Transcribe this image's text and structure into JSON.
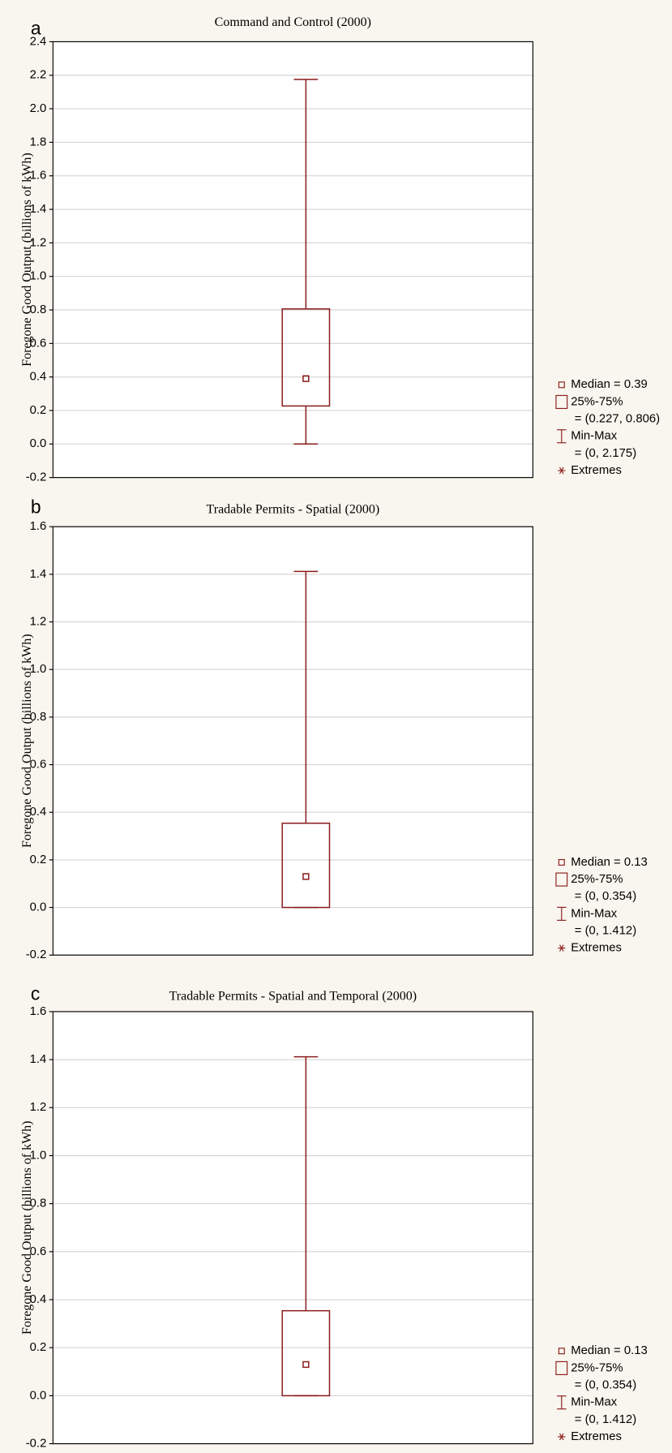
{
  "chart_data": [
    {
      "type": "box",
      "label": "a",
      "title": "Command and Control (2000)",
      "ylabel": "Foregone Good Output (billions of kWh)",
      "median": 0.39,
      "q1": 0.227,
      "q3": 0.806,
      "min": 0,
      "max": 2.175,
      "color": "#8b1a1a",
      "ylim": [
        -0.2,
        2.4
      ],
      "yticks": [
        -0.2,
        {
          "value": 0,
          "label": "0.0"
        },
        0.2,
        0.4,
        0.6,
        0.8,
        {
          "value": 1,
          "label": "1.0"
        },
        1.2,
        1.4,
        1.6,
        1.8,
        {
          "value": 2,
          "label": "2.0"
        },
        2.2,
        2.4
      ],
      "grid": true,
      "legend": [
        "Median = 0.39",
        "25%-75%",
        "= (0.227, 0.806)",
        "Min-Max",
        "= (0, 2.175)",
        "Extremes"
      ]
    },
    {
      "type": "box",
      "label": "b",
      "title": "Tradable Permits - Spatial (2000)",
      "ylabel": "Foregone Good Output (billions of kWh)",
      "median": 0.13,
      "q1": 0,
      "q3": 0.354,
      "min": 0,
      "max": 1.412,
      "color": "#8b1a1a",
      "ylim": [
        -0.2,
        1.6
      ],
      "yticks": [
        -0.2,
        {
          "value": 0,
          "label": "0.0"
        },
        0.2,
        0.4,
        0.6,
        0.8,
        {
          "value": 1,
          "label": "1.0"
        },
        1.2,
        1.4,
        1.6
      ],
      "grid": true,
      "legend": [
        "Median = 0.13",
        "25%-75%",
        "= (0, 0.354)",
        "Min-Max",
        "= (0, 1.412)",
        "Extremes"
      ]
    },
    {
      "type": "box",
      "label": "c",
      "title": "Tradable Permits - Spatial and Temporal (2000)",
      "ylabel": "Foregone Good Output (billions of kWh)",
      "median": 0.13,
      "q1": 0,
      "q3": 0.354,
      "min": 0,
      "max": 1.412,
      "color": "#8b1a1a",
      "ylim": [
        -0.2,
        1.6
      ],
      "yticks": [
        -0.2,
        {
          "value": 0,
          "label": "0.0"
        },
        0.2,
        0.4,
        0.6,
        0.8,
        {
          "value": 1,
          "label": "1.0"
        },
        1.2,
        1.4,
        1.6
      ],
      "grid": true,
      "legend": [
        "Median = 0.13",
        "25%-75%",
        "= (0, 0.354)",
        "Min-Max",
        "= (0, 1.412)",
        "Extremes"
      ]
    }
  ]
}
